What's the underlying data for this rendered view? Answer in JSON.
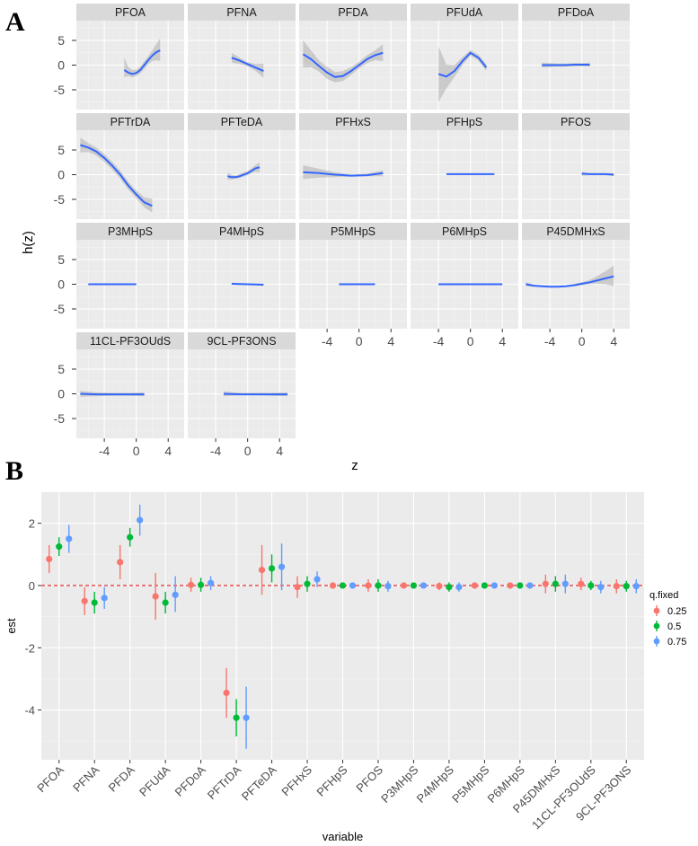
{
  "chart_data": [
    {
      "panel_label": "A",
      "type": "line",
      "xlabel": "z",
      "ylabel": "h(z)",
      "x_ticks": [
        "-4",
        "0",
        "4"
      ],
      "y_ticks": [
        "5",
        "0",
        "-5"
      ],
      "xlim": [
        -7.5,
        6
      ],
      "ylim": [
        -9,
        9
      ],
      "line_color": "#3366ff",
      "band_color": "#999999",
      "facets": [
        {
          "name": "PFOA",
          "x": [
            -1.5,
            -1,
            -0.5,
            0,
            0.5,
            1,
            1.5,
            2,
            2.5,
            3
          ],
          "y": [
            -1.0,
            -1.5,
            -1.8,
            -1.6,
            -1.0,
            0.0,
            1.0,
            1.9,
            2.6,
            3.0
          ],
          "lower": [
            -2.5,
            -2.2,
            -2.5,
            -2.2,
            -1.7,
            -0.8,
            0.2,
            0.8,
            1.0,
            0.8
          ],
          "upper": [
            1.5,
            -0.4,
            -1.0,
            -0.9,
            -0.3,
            0.8,
            1.8,
            3.0,
            4.2,
            5.4
          ]
        },
        {
          "name": "PFNA",
          "x": [
            -2,
            -1,
            0,
            1,
            2
          ],
          "y": [
            1.5,
            0.9,
            0.2,
            -0.5,
            -1.2
          ],
          "lower": [
            0.5,
            0.2,
            -0.2,
            -1.2,
            -2.6
          ],
          "upper": [
            2.5,
            1.5,
            0.6,
            0.2,
            0.3
          ]
        },
        {
          "name": "PFDA",
          "x": [
            -7,
            -6,
            -5,
            -4,
            -3,
            -2,
            -1,
            0,
            1,
            2,
            3
          ],
          "y": [
            2.2,
            1.2,
            -0.2,
            -1.5,
            -2.4,
            -2.2,
            -1.2,
            0.0,
            1.2,
            2.0,
            2.5
          ],
          "lower": [
            -0.5,
            -0.4,
            -1.3,
            -2.8,
            -3.5,
            -3.2,
            -2.0,
            -0.7,
            0.4,
            1.0,
            0.8
          ],
          "upper": [
            5.0,
            3.0,
            0.9,
            -0.3,
            -1.4,
            -1.2,
            -0.4,
            0.7,
            2.0,
            3.0,
            4.2
          ]
        },
        {
          "name": "PFUdA",
          "x": [
            -4,
            -3,
            -2,
            -1,
            0,
            1,
            2
          ],
          "y": [
            -1.8,
            -2.3,
            -1.2,
            0.8,
            2.5,
            1.5,
            -0.5
          ],
          "lower": [
            -7.5,
            -4.7,
            -2.4,
            0.0,
            1.9,
            0.9,
            -1.2
          ],
          "upper": [
            3.8,
            0.1,
            0.0,
            1.6,
            3.1,
            2.1,
            0.2
          ]
        },
        {
          "name": "PFDoA",
          "x": [
            -5,
            -4,
            -3,
            -2,
            -1,
            0,
            1
          ],
          "y": [
            0.0,
            0.0,
            0.0,
            0.0,
            0.1,
            0.1,
            0.1
          ],
          "lower": [
            -0.5,
            -0.4,
            -0.3,
            -0.3,
            -0.2,
            -0.2,
            -0.3
          ],
          "upper": [
            0.5,
            0.4,
            0.3,
            0.3,
            0.4,
            0.4,
            0.5
          ]
        },
        {
          "name": "PFTrDA",
          "x": [
            -7,
            -6,
            -5,
            -4,
            -3,
            -2,
            -1,
            0,
            1,
            2
          ],
          "y": [
            6.0,
            5.5,
            4.7,
            3.4,
            1.8,
            0.0,
            -2.2,
            -4.0,
            -5.6,
            -6.3
          ],
          "lower": [
            4.5,
            4.6,
            3.9,
            2.6,
            1.0,
            -0.8,
            -3.0,
            -4.8,
            -6.6,
            -7.7
          ],
          "upper": [
            7.5,
            6.4,
            5.5,
            4.2,
            2.6,
            0.8,
            -1.4,
            -3.2,
            -4.6,
            -4.9
          ]
        },
        {
          "name": "PFTeDA",
          "x": [
            -2.5,
            -2,
            -1.5,
            -1,
            -0.5,
            0,
            0.5,
            1,
            1.5
          ],
          "y": [
            -0.3,
            -0.5,
            -0.5,
            -0.3,
            0.0,
            0.3,
            0.8,
            1.3,
            1.5
          ],
          "lower": [
            -1.0,
            -1.0,
            -0.8,
            -0.7,
            -0.4,
            -0.1,
            0.3,
            0.6,
            0.5
          ],
          "upper": [
            0.4,
            0.0,
            -0.2,
            0.1,
            0.4,
            0.7,
            1.3,
            2.0,
            2.5
          ]
        },
        {
          "name": "PFHxS",
          "x": [
            -7,
            -5,
            -3,
            -1,
            1,
            3
          ],
          "y": [
            0.5,
            0.3,
            0.0,
            -0.2,
            -0.1,
            0.3
          ],
          "lower": [
            -0.9,
            -0.6,
            -0.5,
            -0.4,
            -0.3,
            -0.3
          ],
          "upper": [
            1.9,
            1.2,
            0.5,
            0.0,
            0.2,
            0.9
          ]
        },
        {
          "name": "PFHpS",
          "x": [
            -3,
            -1,
            1,
            3
          ],
          "y": [
            0.1,
            0.1,
            0.1,
            0.1
          ],
          "lower": [
            0.0,
            0.0,
            0.0,
            0.0
          ],
          "upper": [
            0.2,
            0.2,
            0.2,
            0.2
          ]
        },
        {
          "name": "PFOS",
          "x": [
            0,
            1,
            2,
            3,
            4
          ],
          "y": [
            0.2,
            0.1,
            0.1,
            0.1,
            0.0
          ],
          "lower": [
            -0.2,
            -0.1,
            -0.1,
            -0.1,
            -0.3
          ],
          "upper": [
            0.6,
            0.3,
            0.3,
            0.3,
            0.3
          ]
        },
        {
          "name": "P3MHpS",
          "x": [
            -6,
            -4,
            -2,
            0
          ],
          "y": [
            0.0,
            0.0,
            0.0,
            0.0
          ],
          "lower": [
            -0.1,
            -0.1,
            -0.1,
            -0.1
          ],
          "upper": [
            0.1,
            0.1,
            0.1,
            0.1
          ]
        },
        {
          "name": "P4MHpS",
          "x": [
            -2,
            -1,
            0,
            1,
            2
          ],
          "y": [
            0.1,
            0.05,
            0.0,
            -0.05,
            -0.1
          ],
          "lower": [
            0.0,
            -0.05,
            -0.1,
            -0.15,
            -0.25
          ],
          "upper": [
            0.2,
            0.15,
            0.1,
            0.05,
            0.05
          ]
        },
        {
          "name": "P5MHpS",
          "x": [
            -2.5,
            -1,
            0.5,
            2
          ],
          "y": [
            0.0,
            0.0,
            0.0,
            0.0
          ],
          "lower": [
            -0.1,
            -0.1,
            -0.1,
            -0.1
          ],
          "upper": [
            0.1,
            0.1,
            0.1,
            0.1
          ]
        },
        {
          "name": "P6MHpS",
          "x": [
            -4,
            -2,
            0,
            2,
            4
          ],
          "y": [
            0.0,
            0.0,
            0.0,
            0.0,
            0.0
          ],
          "lower": [
            -0.1,
            -0.1,
            -0.1,
            -0.1,
            -0.1
          ],
          "upper": [
            0.1,
            0.1,
            0.1,
            0.1,
            0.1
          ]
        },
        {
          "name": "P45DMHxS",
          "x": [
            -7,
            -6,
            -5,
            -4,
            -3,
            -2,
            -1,
            0,
            1,
            2,
            3,
            4
          ],
          "y": [
            0.0,
            -0.3,
            -0.4,
            -0.5,
            -0.5,
            -0.4,
            -0.2,
            0.1,
            0.4,
            0.8,
            1.2,
            1.6
          ],
          "lower": [
            -0.4,
            -0.5,
            -0.5,
            -0.6,
            -0.6,
            -0.5,
            -0.4,
            -0.2,
            0.0,
            0.1,
            0.0,
            -0.4
          ],
          "upper": [
            0.4,
            -0.1,
            -0.3,
            -0.4,
            -0.4,
            -0.3,
            0.0,
            0.4,
            0.9,
            1.7,
            2.7,
            3.8
          ]
        },
        {
          "name": "11CL-PF3OUdS",
          "x": [
            -7,
            -5,
            -3,
            -1,
            1
          ],
          "y": [
            0.0,
            -0.1,
            -0.1,
            -0.1,
            -0.1
          ],
          "lower": [
            -0.6,
            -0.5,
            -0.4,
            -0.4,
            -0.5
          ],
          "upper": [
            0.6,
            0.3,
            0.2,
            0.2,
            0.3
          ]
        },
        {
          "name": "9CL-PF3ONS",
          "x": [
            -3,
            -1,
            1,
            3,
            5
          ],
          "y": [
            0.0,
            -0.1,
            -0.1,
            -0.1,
            -0.1
          ],
          "lower": [
            -0.5,
            -0.3,
            -0.3,
            -0.4,
            -0.5
          ],
          "upper": [
            0.5,
            0.2,
            0.2,
            0.2,
            0.3
          ]
        }
      ]
    },
    {
      "panel_label": "B",
      "type": "scatter",
      "xlabel": "variable",
      "ylabel": "est",
      "ylim": [
        -5.6,
        3.0
      ],
      "y_ticks": [
        2,
        0,
        -2,
        -4
      ],
      "hline": 0,
      "hline_color": "#e41a1c",
      "categories": [
        "PFOA",
        "PFNA",
        "PFDA",
        "PFUdA",
        "PFDoA",
        "PFTrDA",
        "PFTeDA",
        "PFHxS",
        "PFHpS",
        "PFOS",
        "P3MHpS",
        "P4MHpS",
        "P5MHpS",
        "P6MHpS",
        "P45DMHxS",
        "11CL-PF3OUdS",
        "9CL-PF3ONS"
      ],
      "legend_title": "q.fixed",
      "legend_position": "right",
      "series": [
        {
          "name": "0.25",
          "color": "#f8766d",
          "est": [
            0.85,
            -0.5,
            0.75,
            -0.35,
            0.02,
            -3.45,
            0.5,
            -0.05,
            0.0,
            0.0,
            0.0,
            -0.02,
            0.0,
            0.0,
            0.05,
            0.05,
            -0.02
          ],
          "lower": [
            0.4,
            -0.95,
            0.2,
            -1.1,
            -0.2,
            -4.25,
            -0.3,
            -0.4,
            -0.1,
            -0.2,
            -0.1,
            -0.15,
            -0.1,
            -0.1,
            -0.25,
            -0.15,
            -0.25
          ],
          "upper": [
            1.3,
            -0.05,
            1.3,
            0.4,
            0.25,
            -2.65,
            1.3,
            0.3,
            0.1,
            0.2,
            0.1,
            0.1,
            0.1,
            0.1,
            0.35,
            0.25,
            0.2
          ]
        },
        {
          "name": "0.5",
          "color": "#00ba38",
          "est": [
            1.25,
            -0.55,
            1.55,
            -0.55,
            0.02,
            -4.25,
            0.55,
            0.05,
            0.0,
            0.0,
            0.0,
            -0.05,
            0.0,
            0.0,
            0.05,
            0.0,
            -0.02
          ],
          "lower": [
            0.95,
            -0.9,
            1.25,
            -0.9,
            -0.2,
            -4.85,
            0.1,
            -0.2,
            -0.1,
            -0.2,
            -0.1,
            -0.2,
            -0.1,
            -0.1,
            -0.2,
            -0.15,
            -0.2
          ],
          "upper": [
            1.55,
            -0.2,
            1.85,
            -0.2,
            0.25,
            -3.65,
            1.0,
            0.3,
            0.1,
            0.2,
            0.1,
            0.1,
            0.1,
            0.1,
            0.3,
            0.15,
            0.15
          ]
        },
        {
          "name": "0.75",
          "color": "#619cff",
          "est": [
            1.5,
            -0.4,
            2.1,
            -0.3,
            0.08,
            -4.25,
            0.6,
            0.2,
            0.0,
            -0.02,
            0.0,
            -0.05,
            0.0,
            0.0,
            0.05,
            -0.05,
            -0.02
          ],
          "lower": [
            1.05,
            -0.75,
            1.6,
            -0.85,
            -0.15,
            -5.25,
            -0.15,
            -0.05,
            -0.1,
            -0.2,
            -0.1,
            -0.2,
            -0.1,
            -0.1,
            -0.25,
            -0.25,
            -0.25
          ],
          "upper": [
            1.95,
            -0.05,
            2.6,
            0.3,
            0.3,
            -3.25,
            1.35,
            0.45,
            0.1,
            0.15,
            0.1,
            0.1,
            0.1,
            0.1,
            0.35,
            0.15,
            0.2
          ]
        }
      ]
    }
  ]
}
